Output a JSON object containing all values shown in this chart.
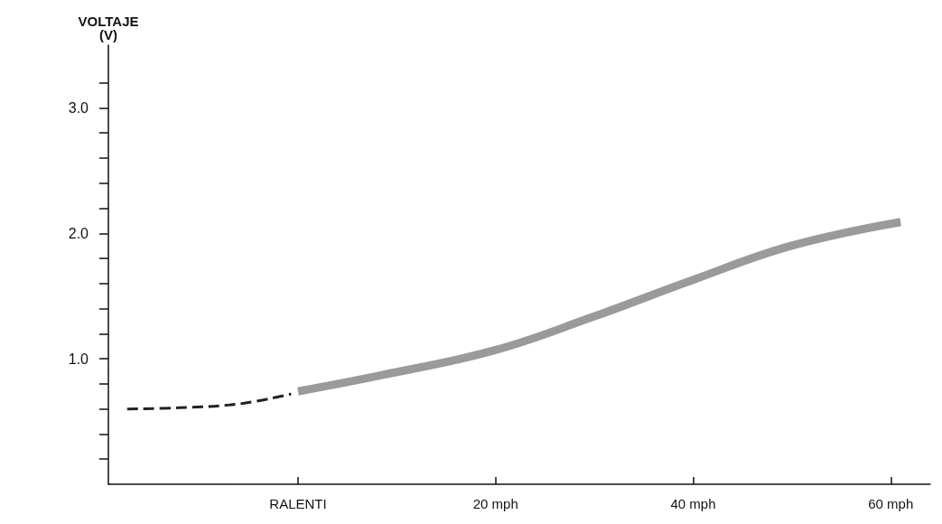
{
  "chart_data": {
    "type": "line",
    "ylabel": "VOLTAJE\n(V)",
    "xlim": [
      -19.2,
      64
    ],
    "xticks": [
      {
        "value": 0,
        "label": "RALENTI"
      },
      {
        "value": 20,
        "label": "20 mph"
      },
      {
        "value": 40,
        "label": "40 mph"
      },
      {
        "value": 60,
        "label": "60 mph"
      }
    ],
    "ylim": [
      0,
      3.5
    ],
    "yticks": [
      {
        "value": 0.2,
        "label": null
      },
      {
        "value": 0.4,
        "label": null
      },
      {
        "value": 0.6,
        "label": null
      },
      {
        "value": 0.8,
        "label": null
      },
      {
        "value": 1,
        "label": "1.0"
      },
      {
        "value": 1.2,
        "label": null
      },
      {
        "value": 1.4,
        "label": null
      },
      {
        "value": 1.6,
        "label": null
      },
      {
        "value": 1.8,
        "label": null
      },
      {
        "value": 2,
        "label": "2.0"
      },
      {
        "value": 2.2,
        "label": null
      },
      {
        "value": 2.4,
        "label": null
      },
      {
        "value": 2.6,
        "label": null
      },
      {
        "value": 2.8,
        "label": null
      },
      {
        "value": 3,
        "label": "3.0"
      },
      {
        "value": 3.2,
        "label": null
      }
    ],
    "marker": "none",
    "series": [
      {
        "color": "#222222",
        "line_style": "dashed",
        "x": [
          -17.3,
          -12,
          -6,
          -0.7
        ],
        "values": [
          0.6,
          0.61,
          0.64,
          0.72
        ]
      },
      {
        "color": "#9a9a9a",
        "line_style": "solid",
        "x": [
          0,
          8.5,
          20,
          29.7,
          40,
          49.9,
          61
        ],
        "values": [
          0.74,
          0.87,
          1.07,
          1.33,
          1.63,
          1.9,
          2.09
        ]
      }
    ]
  }
}
